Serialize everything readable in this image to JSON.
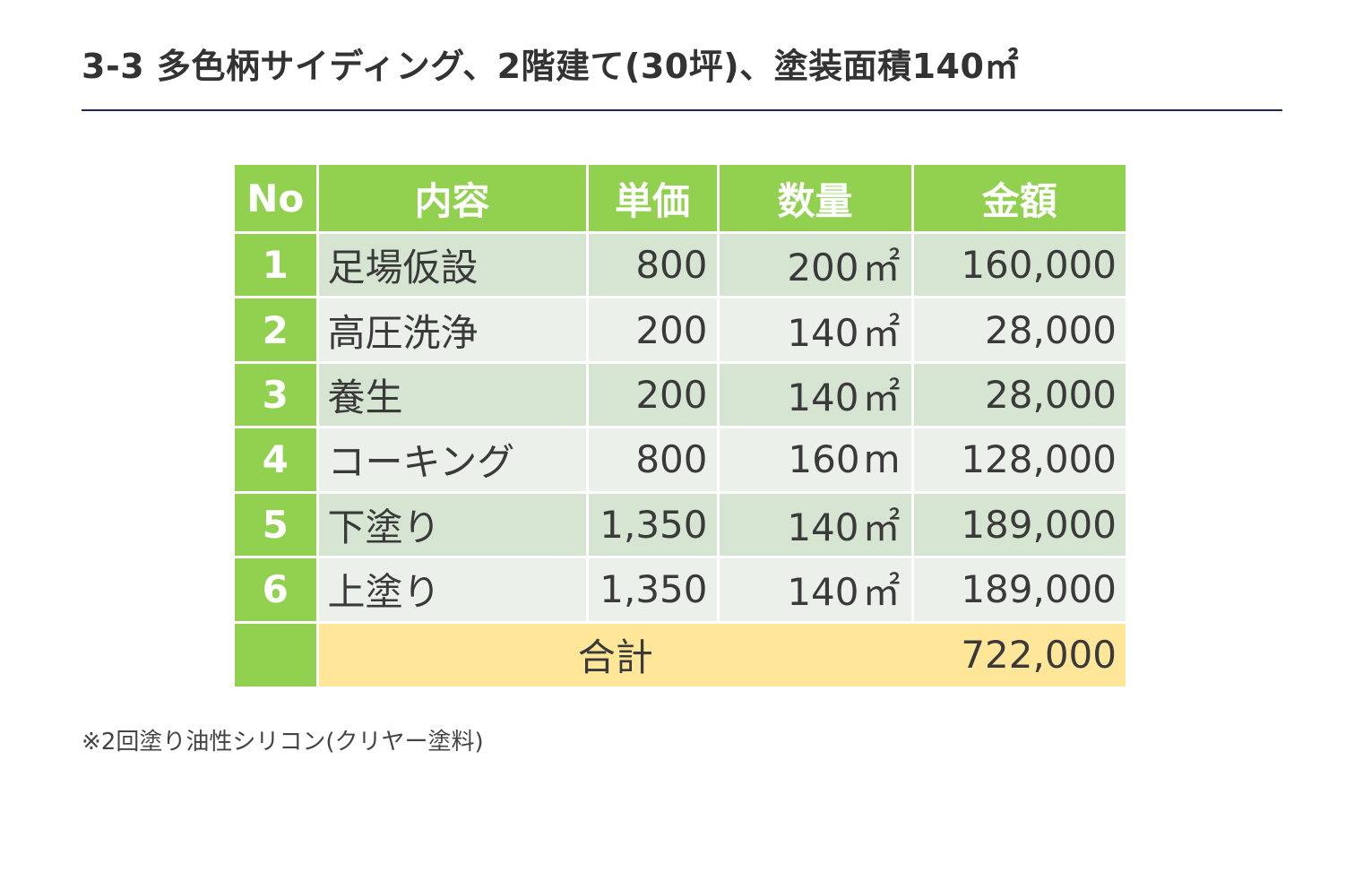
{
  "title": "3-3 多色柄サイディング、2階建て(30坪)、塗装面積140㎡",
  "table": {
    "headers": {
      "no": "No",
      "description": "内容",
      "unit_price": "単価",
      "quantity": "数量",
      "amount": "金額"
    },
    "rows": [
      {
        "no": "1",
        "description": "足場仮設",
        "unit_price": "800",
        "quantity": "200",
        "unit": "㎡",
        "amount": "160,000"
      },
      {
        "no": "2",
        "description": "高圧洗浄",
        "unit_price": "200",
        "quantity": "140",
        "unit": "㎡",
        "amount": "28,000"
      },
      {
        "no": "3",
        "description": "養生",
        "unit_price": "200",
        "quantity": "140",
        "unit": "㎡",
        "amount": "28,000"
      },
      {
        "no": "4",
        "description": "コーキング",
        "unit_price": "800",
        "quantity": "160",
        "unit": "m",
        "amount": "128,000"
      },
      {
        "no": "5",
        "description": "下塗り",
        "unit_price": "1,350",
        "quantity": "140",
        "unit": "㎡",
        "amount": "189,000"
      },
      {
        "no": "6",
        "description": "上塗り",
        "unit_price": "1,350",
        "quantity": "140",
        "unit": "㎡",
        "amount": "189,000"
      }
    ],
    "total": {
      "label": "合計",
      "amount": "722,000"
    }
  },
  "footnote": "※2回塗り油性シリコン(クリヤー塗料)",
  "colors": {
    "header_green": "#92d050",
    "row_dark": "#d6e4d2",
    "row_light": "#ebf1ea",
    "total_yellow": "#ffe699",
    "rule_navy": "#1c2a4f"
  }
}
